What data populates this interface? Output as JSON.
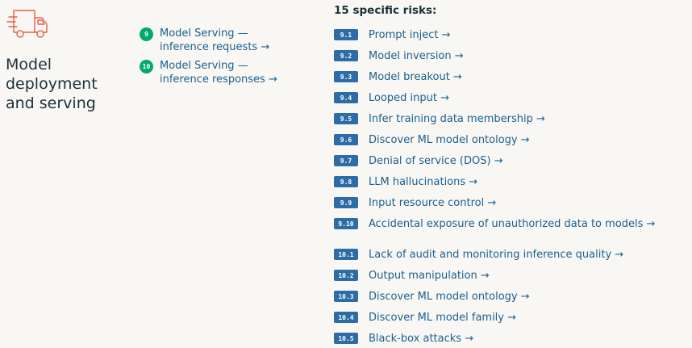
{
  "section": {
    "icon": "truck-icon",
    "accent_color": "#e8614a",
    "title_lines": [
      "Model",
      "deployment",
      "and serving"
    ]
  },
  "components": [
    {
      "number": "9",
      "label_lines": [
        "Model Serving —",
        "inference requests →"
      ]
    },
    {
      "number": "10",
      "label_lines": [
        "Model Serving —",
        "inference responses →"
      ]
    }
  ],
  "risks": {
    "heading": "15 specific risks:",
    "items": [
      {
        "code": "9.1",
        "label": "Prompt inject →"
      },
      {
        "code": "9.2",
        "label": "Model inversion →"
      },
      {
        "code": "9.3",
        "label": "Model breakout →"
      },
      {
        "code": "9.4",
        "label": "Looped input →"
      },
      {
        "code": "9.5",
        "label": "Infer training data membership →"
      },
      {
        "code": "9.6",
        "label": "Discover ML model ontology →"
      },
      {
        "code": "9.7",
        "label": "Denial of service (DOS) →"
      },
      {
        "code": "9.8",
        "label": "LLM hallucinations →"
      },
      {
        "code": "9.9",
        "label": "Input resource control →"
      },
      {
        "code": "9.10",
        "label": "Accidental exposure of unauthorized data to models →"
      },
      {
        "code": "10.1",
        "label": "Lack of audit and monitoring inference quality →"
      },
      {
        "code": "10.2",
        "label": "Output manipulation →"
      },
      {
        "code": "10.3",
        "label": "Discover ML model ontology →"
      },
      {
        "code": "10.4",
        "label": "Discover ML model family →"
      },
      {
        "code": "10.5",
        "label": "Black-box attacks →"
      }
    ]
  },
  "colors": {
    "component_badge": "#00a972",
    "risk_badge": "#2e6ca8",
    "link_text": "#1a5f8f"
  }
}
